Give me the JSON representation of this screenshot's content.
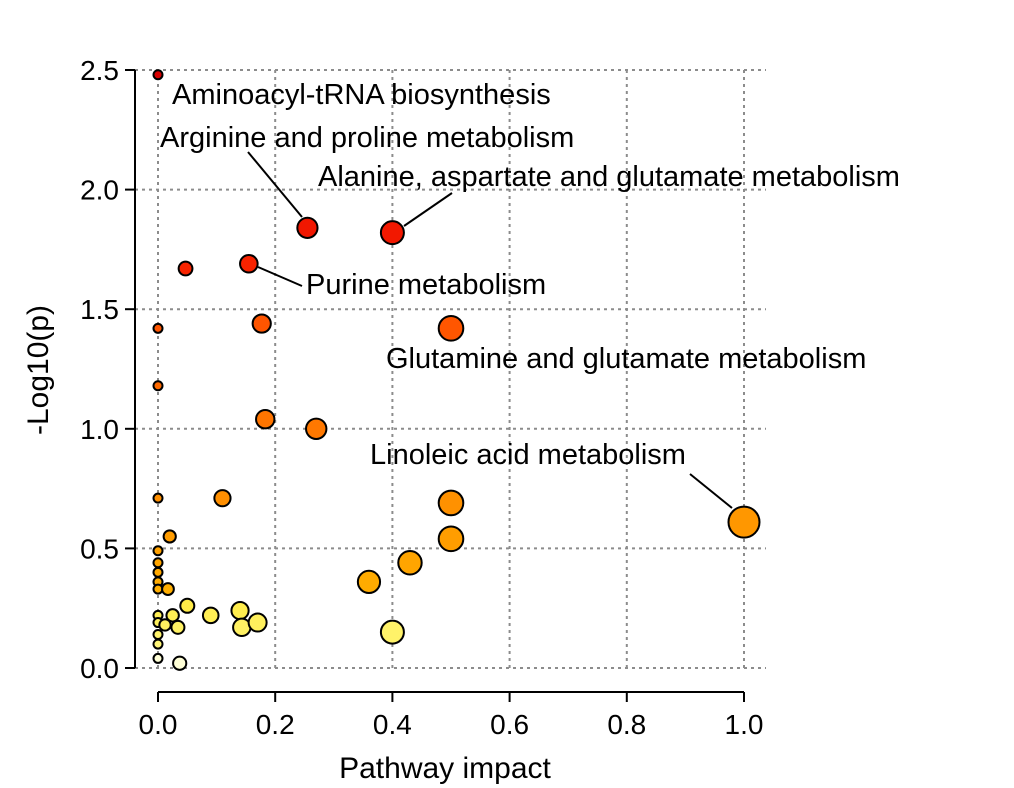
{
  "chart_data": {
    "type": "scatter",
    "title": "",
    "xlabel": "Pathway impact",
    "ylabel": "-Log10(p)",
    "xlim": [
      -0.04,
      1.04
    ],
    "ylim": [
      -0.02,
      2.55
    ],
    "x_ticks": [
      0.0,
      0.2,
      0.4,
      0.6,
      0.8,
      1.0
    ],
    "x_tick_labels": [
      "0.0",
      "0.2",
      "0.4",
      "0.6",
      "0.8",
      "1.0"
    ],
    "y_ticks": [
      0.0,
      0.5,
      1.0,
      1.5,
      2.0,
      2.5
    ],
    "y_tick_labels": [
      "0.0",
      "0.5",
      "1.0",
      "1.5",
      "2.0",
      "2.5"
    ],
    "grid": true,
    "legend": "none",
    "color_scale": "yellow (low -log10 p) to red (high -log10 p); point size scales with pathway impact",
    "points": [
      {
        "x": 0.0,
        "y": 2.48
      },
      {
        "x": 0.255,
        "y": 1.84
      },
      {
        "x": 0.4,
        "y": 1.82
      },
      {
        "x": 0.047,
        "y": 1.67
      },
      {
        "x": 0.155,
        "y": 1.69
      },
      {
        "x": 0.0,
        "y": 1.42
      },
      {
        "x": 0.177,
        "y": 1.44
      },
      {
        "x": 0.5,
        "y": 1.42
      },
      {
        "x": 0.0,
        "y": 1.18
      },
      {
        "x": 0.183,
        "y": 1.04
      },
      {
        "x": 0.27,
        "y": 1.0
      },
      {
        "x": 0.0,
        "y": 0.71
      },
      {
        "x": 0.11,
        "y": 0.71
      },
      {
        "x": 0.5,
        "y": 0.69
      },
      {
        "x": 1.0,
        "y": 0.61
      },
      {
        "x": 0.02,
        "y": 0.55
      },
      {
        "x": 0.5,
        "y": 0.54
      },
      {
        "x": 0.0,
        "y": 0.49
      },
      {
        "x": 0.0,
        "y": 0.44
      },
      {
        "x": 0.43,
        "y": 0.44
      },
      {
        "x": 0.0,
        "y": 0.4
      },
      {
        "x": 0.0,
        "y": 0.36
      },
      {
        "x": 0.36,
        "y": 0.36
      },
      {
        "x": 0.0,
        "y": 0.33
      },
      {
        "x": 0.017,
        "y": 0.33
      },
      {
        "x": 0.05,
        "y": 0.26
      },
      {
        "x": 0.0,
        "y": 0.22
      },
      {
        "x": 0.025,
        "y": 0.22
      },
      {
        "x": 0.09,
        "y": 0.22
      },
      {
        "x": 0.14,
        "y": 0.24
      },
      {
        "x": 0.0,
        "y": 0.19
      },
      {
        "x": 0.012,
        "y": 0.18
      },
      {
        "x": 0.034,
        "y": 0.17
      },
      {
        "x": 0.143,
        "y": 0.17
      },
      {
        "x": 0.17,
        "y": 0.19
      },
      {
        "x": 0.0,
        "y": 0.14
      },
      {
        "x": 0.4,
        "y": 0.15
      },
      {
        "x": 0.0,
        "y": 0.1
      },
      {
        "x": 0.0,
        "y": 0.04
      },
      {
        "x": 0.037,
        "y": 0.02
      }
    ],
    "annotations": [
      {
        "text": "Aminoacyl-tRNA biosynthesis",
        "point": [
          0.0,
          2.48
        ],
        "leader": false
      },
      {
        "text": "Arginine and proline metabolism",
        "point": [
          0.255,
          1.84
        ],
        "leader": true
      },
      {
        "text": "Alanine, aspartate and glutamate metabolism",
        "point": [
          0.4,
          1.82
        ],
        "leader": true
      },
      {
        "text": "Purine metabolism",
        "point": [
          0.155,
          1.69
        ],
        "leader": true
      },
      {
        "text": "Glutamine and glutamate metabolism",
        "point": [
          0.5,
          1.42
        ],
        "leader": false
      },
      {
        "text": "Linoleic acid metabolism",
        "point": [
          1.0,
          0.61
        ],
        "leader": true
      }
    ]
  }
}
